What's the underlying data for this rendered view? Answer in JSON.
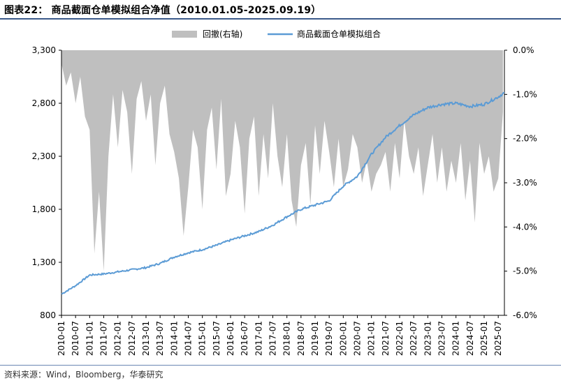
{
  "header": {
    "title": "图表22： 商品截面仓单模拟组合净值（2010.01.05-2025.09.19）"
  },
  "footer": {
    "source": "资料来源：Wind，Bloomberg，华泰研究"
  },
  "colors": {
    "line": "#5b9bd5",
    "area": "#bfbfbf",
    "rule": "#3b5a8a"
  },
  "chart_data": {
    "type": "line",
    "subtype": "line with drawdown area on secondary axis",
    "x_tick_labels": [
      "2010-01",
      "2010-07",
      "2011-01",
      "2011-07",
      "2012-01",
      "2012-07",
      "2013-01",
      "2013-07",
      "2014-01",
      "2014-07",
      "2015-01",
      "2015-07",
      "2016-01",
      "2016-07",
      "2017-01",
      "2017-07",
      "2018-01",
      "2018-07",
      "2019-01",
      "2019-07",
      "2020-01",
      "2020-07",
      "2021-01",
      "2021-07",
      "2022-01",
      "2022-07",
      "2023-01",
      "2023-07",
      "2024-01",
      "2024-07",
      "2025-01",
      "2025-07"
    ],
    "x_range": [
      "2010-01-05",
      "2025-09-19"
    ],
    "y_left": {
      "min": 800,
      "max": 3300,
      "ticks": [
        "800",
        "1,300",
        "1,800",
        "2,300",
        "2,800",
        "3,300"
      ]
    },
    "y_right": {
      "min": -6.0,
      "max": 0.0,
      "ticks": [
        "0.0%",
        "-1.0%",
        "-2.0%",
        "-3.0%",
        "-4.0%",
        "-5.0%",
        "-6.0%"
      ]
    },
    "legend": {
      "position": "top",
      "items": [
        "回撤(右轴)",
        "商品截面仓单模拟组合"
      ]
    },
    "series": [
      {
        "name": "商品截面仓单模拟组合",
        "axis": "left",
        "kind": "line",
        "x": [
          "2010-01",
          "2010-07",
          "2011-01",
          "2011-07",
          "2012-01",
          "2012-07",
          "2013-01",
          "2013-07",
          "2014-01",
          "2014-07",
          "2015-01",
          "2015-07",
          "2016-01",
          "2016-07",
          "2017-01",
          "2017-07",
          "2018-01",
          "2018-07",
          "2019-01",
          "2019-07",
          "2020-01",
          "2020-07",
          "2021-01",
          "2021-07",
          "2022-01",
          "2022-07",
          "2023-01",
          "2023-07",
          "2024-01",
          "2024-07",
          "2025-01",
          "2025-07",
          "2025-09"
        ],
        "values": [
          1000,
          1080,
          1180,
          1190,
          1210,
          1230,
          1250,
          1290,
          1350,
          1390,
          1420,
          1460,
          1510,
          1550,
          1590,
          1650,
          1730,
          1800,
          1840,
          1880,
          2020,
          2110,
          2320,
          2480,
          2590,
          2690,
          2760,
          2790,
          2800,
          2770,
          2790,
          2860,
          2900
        ]
      },
      {
        "name": "回撤(右轴)",
        "axis": "right",
        "kind": "area",
        "x": [
          "2010-01",
          "2010-03",
          "2010-05",
          "2010-07",
          "2010-09",
          "2010-11",
          "2011-01",
          "2011-03",
          "2011-05",
          "2011-07",
          "2011-09",
          "2011-11",
          "2012-01",
          "2012-03",
          "2012-05",
          "2012-07",
          "2012-09",
          "2012-11",
          "2013-01",
          "2013-03",
          "2013-05",
          "2013-07",
          "2013-09",
          "2013-11",
          "2014-01",
          "2014-03",
          "2014-05",
          "2014-07",
          "2014-09",
          "2014-11",
          "2015-01",
          "2015-03",
          "2015-05",
          "2015-07",
          "2015-09",
          "2015-11",
          "2016-01",
          "2016-03",
          "2016-05",
          "2016-07",
          "2016-09",
          "2016-11",
          "2017-01",
          "2017-03",
          "2017-05",
          "2017-07",
          "2017-09",
          "2017-11",
          "2018-01",
          "2018-03",
          "2018-05",
          "2018-07",
          "2018-09",
          "2018-11",
          "2019-01",
          "2019-03",
          "2019-05",
          "2019-07",
          "2019-09",
          "2019-11",
          "2020-01",
          "2020-03",
          "2020-05",
          "2020-07",
          "2020-09",
          "2020-11",
          "2021-01",
          "2021-03",
          "2021-05",
          "2021-07",
          "2021-09",
          "2021-11",
          "2022-01",
          "2022-03",
          "2022-05",
          "2022-07",
          "2022-09",
          "2022-11",
          "2023-01",
          "2023-03",
          "2023-05",
          "2023-07",
          "2023-09",
          "2023-11",
          "2024-01",
          "2024-03",
          "2024-05",
          "2024-07",
          "2024-09",
          "2024-11",
          "2025-01",
          "2025-03",
          "2025-05",
          "2025-07",
          "2025-09"
        ],
        "values": [
          -0.3,
          -0.8,
          -0.5,
          -1.2,
          -0.6,
          -1.5,
          -1.8,
          -4.6,
          -3.2,
          -5.0,
          -2.4,
          -1.0,
          -2.2,
          -0.9,
          -1.4,
          -2.8,
          -1.1,
          -0.7,
          -1.6,
          -1.0,
          -2.6,
          -1.2,
          -0.8,
          -1.9,
          -2.3,
          -2.9,
          -4.2,
          -3.1,
          -1.8,
          -2.2,
          -3.6,
          -1.8,
          -1.3,
          -2.7,
          -1.1,
          -3.3,
          -2.8,
          -1.6,
          -2.2,
          -3.7,
          -2.0,
          -1.5,
          -3.3,
          -1.9,
          -2.9,
          -1.2,
          -2.4,
          -3.1,
          -1.9,
          -3.4,
          -4.0,
          -2.6,
          -2.1,
          -3.5,
          -1.7,
          -2.8,
          -1.6,
          -2.3,
          -3.1,
          -2.0,
          -3.1,
          -2.7,
          -1.9,
          -2.2,
          -3.0,
          -2.5,
          -3.2,
          -2.8,
          -2.6,
          -2.3,
          -3.2,
          -2.1,
          -2.9,
          -1.6,
          -2.4,
          -2.8,
          -2.2,
          -3.3,
          -2.6,
          -1.9,
          -3.0,
          -2.2,
          -3.2,
          -2.5,
          -3.0,
          -2.1,
          -3.4,
          -2.5,
          -3.9,
          -2.1,
          -2.8,
          -2.4,
          -3.2,
          -2.9,
          -1.4
        ]
      }
    ],
    "grid": false
  }
}
